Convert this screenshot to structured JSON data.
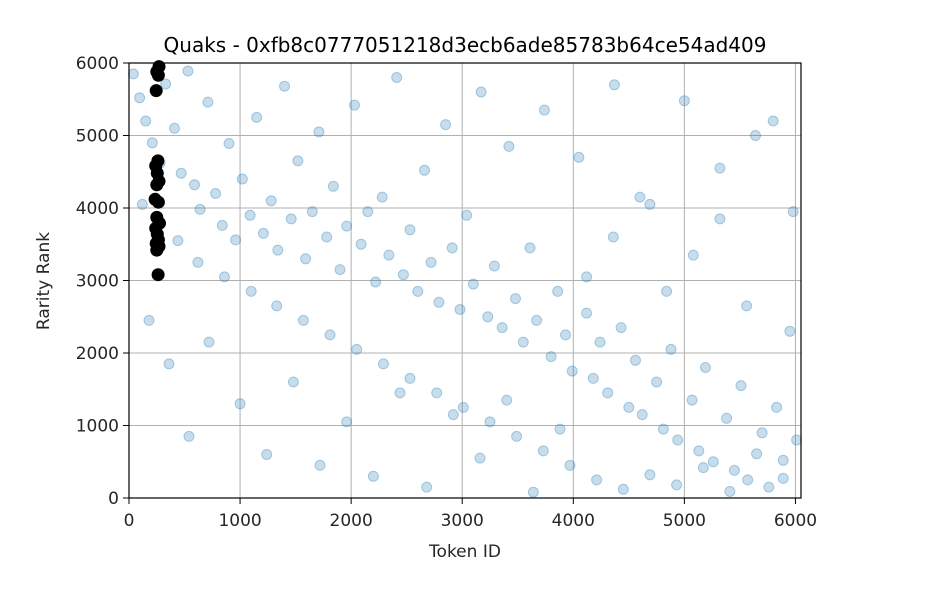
{
  "chart_data": {
    "type": "scatter",
    "title": "Quaks - 0xfb8c0777051218d3ecb6ade85783b64ce54ad409",
    "xlabel": "Token ID",
    "ylabel": "Rarity Rank",
    "xlim": [
      0,
      6050
    ],
    "ylim": [
      0,
      6000
    ],
    "xticks": [
      0,
      1000,
      2000,
      3000,
      4000,
      5000,
      6000
    ],
    "yticks": [
      0,
      1000,
      2000,
      3000,
      4000,
      5000,
      6000
    ],
    "grid": true,
    "colors": {
      "all_tokens": "#1f77b4",
      "highlighted": "#000000",
      "grid": "#b0b0b0",
      "axes": "#000000"
    },
    "series": [
      {
        "name": "",
        "marker": "circle",
        "alpha": 0.25,
        "color": "#1f77b4",
        "points": [
          [
            40,
            5850
          ],
          [
            95,
            5520
          ],
          [
            150,
            5200
          ],
          [
            210,
            4900
          ],
          [
            280,
            4620
          ],
          [
            330,
            5710
          ],
          [
            410,
            5100
          ],
          [
            470,
            4480
          ],
          [
            530,
            5890
          ],
          [
            590,
            4320
          ],
          [
            640,
            3980
          ],
          [
            710,
            5460
          ],
          [
            780,
            4200
          ],
          [
            840,
            3760
          ],
          [
            900,
            4890
          ],
          [
            960,
            3560
          ],
          [
            1020,
            4400
          ],
          [
            1090,
            3900
          ],
          [
            1150,
            5250
          ],
          [
            1210,
            3650
          ],
          [
            1280,
            4100
          ],
          [
            1340,
            3420
          ],
          [
            1400,
            5680
          ],
          [
            1460,
            3850
          ],
          [
            1520,
            4650
          ],
          [
            1590,
            3300
          ],
          [
            1650,
            3950
          ],
          [
            1710,
            5050
          ],
          [
            1780,
            3600
          ],
          [
            1840,
            4300
          ],
          [
            1900,
            3150
          ],
          [
            1960,
            3750
          ],
          [
            2030,
            5420
          ],
          [
            2090,
            3500
          ],
          [
            2150,
            3950
          ],
          [
            2220,
            2980
          ],
          [
            2280,
            4150
          ],
          [
            2340,
            3350
          ],
          [
            2410,
            5800
          ],
          [
            2470,
            3080
          ],
          [
            2530,
            3700
          ],
          [
            2600,
            2850
          ],
          [
            2660,
            4520
          ],
          [
            2720,
            3250
          ],
          [
            2790,
            2700
          ],
          [
            2850,
            5150
          ],
          [
            2910,
            3450
          ],
          [
            2980,
            2600
          ],
          [
            3040,
            3900
          ],
          [
            3100,
            2950
          ],
          [
            3170,
            5600
          ],
          [
            3230,
            2500
          ],
          [
            3290,
            3200
          ],
          [
            3360,
            2350
          ],
          [
            3420,
            4850
          ],
          [
            3480,
            2750
          ],
          [
            3550,
            2150
          ],
          [
            3610,
            3450
          ],
          [
            3670,
            2450
          ],
          [
            3740,
            5350
          ],
          [
            3800,
            1950
          ],
          [
            3860,
            2850
          ],
          [
            3930,
            2250
          ],
          [
            3990,
            1750
          ],
          [
            4050,
            4700
          ],
          [
            4120,
            2550
          ],
          [
            4180,
            1650
          ],
          [
            4240,
            2150
          ],
          [
            4310,
            1450
          ],
          [
            4370,
            5700
          ],
          [
            4430,
            2350
          ],
          [
            4500,
            1250
          ],
          [
            4560,
            1900
          ],
          [
            4620,
            1150
          ],
          [
            4690,
            4050
          ],
          [
            4750,
            1600
          ],
          [
            4810,
            950
          ],
          [
            4880,
            2050
          ],
          [
            4940,
            800
          ],
          [
            5000,
            5480
          ],
          [
            5070,
            1350
          ],
          [
            5130,
            650
          ],
          [
            5190,
            1800
          ],
          [
            5260,
            500
          ],
          [
            5320,
            3850
          ],
          [
            5380,
            1100
          ],
          [
            5450,
            380
          ],
          [
            5510,
            1550
          ],
          [
            5570,
            250
          ],
          [
            5640,
            5000
          ],
          [
            5700,
            900
          ],
          [
            5760,
            150
          ],
          [
            5830,
            1250
          ],
          [
            5890,
            520
          ],
          [
            5950,
            2300
          ],
          [
            6010,
            800
          ],
          [
            180,
            2450
          ],
          [
            360,
            1850
          ],
          [
            540,
            850
          ],
          [
            720,
            2150
          ],
          [
            1000,
            1300
          ],
          [
            1240,
            600
          ],
          [
            1480,
            1600
          ],
          [
            1720,
            450
          ],
          [
            1960,
            1050
          ],
          [
            2200,
            300
          ],
          [
            2440,
            1450
          ],
          [
            2680,
            150
          ],
          [
            2920,
            1150
          ],
          [
            3160,
            550
          ],
          [
            3400,
            1350
          ],
          [
            3640,
            80
          ],
          [
            3880,
            950
          ],
          [
            4120,
            3050
          ],
          [
            4360,
            3600
          ],
          [
            4600,
            4150
          ],
          [
            4840,
            2850
          ],
          [
            5080,
            3350
          ],
          [
            5320,
            4550
          ],
          [
            5560,
            2650
          ],
          [
            5800,
            5200
          ],
          [
            5980,
            3950
          ],
          [
            120,
            4050
          ],
          [
            260,
            3750
          ],
          [
            440,
            3550
          ],
          [
            620,
            3250
          ],
          [
            860,
            3050
          ],
          [
            1100,
            2850
          ],
          [
            1330,
            2650
          ],
          [
            1570,
            2450
          ],
          [
            1810,
            2250
          ],
          [
            2050,
            2050
          ],
          [
            2290,
            1850
          ],
          [
            2530,
            1650
          ],
          [
            2770,
            1450
          ],
          [
            3010,
            1250
          ],
          [
            3250,
            1050
          ],
          [
            3490,
            850
          ],
          [
            3730,
            650
          ],
          [
            3970,
            450
          ],
          [
            4210,
            250
          ],
          [
            4450,
            120
          ],
          [
            4690,
            320
          ],
          [
            4930,
            180
          ],
          [
            5170,
            420
          ],
          [
            5410,
            90
          ],
          [
            5650,
            610
          ],
          [
            5890,
            270
          ]
        ]
      },
      {
        "name": "",
        "marker": "circle",
        "alpha": 1.0,
        "color": "#000000",
        "points": [
          [
            270,
            5950
          ],
          [
            250,
            5880
          ],
          [
            265,
            5830
          ],
          [
            245,
            5620
          ],
          [
            260,
            4650
          ],
          [
            240,
            4580
          ],
          [
            255,
            4480
          ],
          [
            270,
            4370
          ],
          [
            250,
            4320
          ],
          [
            235,
            4120
          ],
          [
            265,
            4080
          ],
          [
            250,
            3870
          ],
          [
            275,
            3790
          ],
          [
            240,
            3720
          ],
          [
            255,
            3640
          ],
          [
            265,
            3560
          ],
          [
            245,
            3510
          ],
          [
            270,
            3470
          ],
          [
            250,
            3420
          ],
          [
            262,
            3080
          ]
        ]
      }
    ]
  }
}
